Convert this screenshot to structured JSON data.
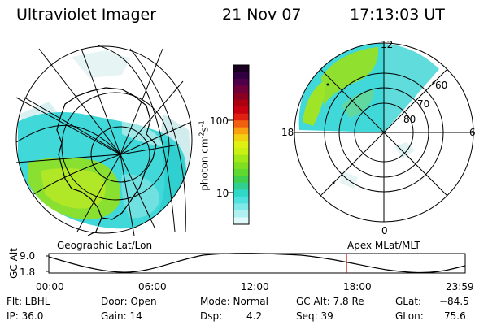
{
  "header": {
    "instrument": "Ultraviolet Imager",
    "date": "21 Nov 07",
    "time": "17:13:03 UT"
  },
  "left_panel": {
    "label": "Geographic Lat/Lon"
  },
  "right_panel": {
    "label": "Apex MLat/MLT",
    "mlt_labels": [
      "12",
      "18",
      "6",
      "0"
    ],
    "mlat_labels": [
      "60",
      "70",
      "80"
    ]
  },
  "colorbar": {
    "unit_label": "photon cm",
    "unit_sup1": "-2",
    "unit_s": "s",
    "unit_sup2": "-1",
    "ticks": [
      "100",
      "10"
    ],
    "colors": [
      "#1a0020",
      "#300040",
      "#50004a",
      "#70003a",
      "#8a0020",
      "#aa0010",
      "#c80010",
      "#e02010",
      "#f06010",
      "#f8a010",
      "#f0d010",
      "#e0f010",
      "#c8f010",
      "#a0e818",
      "#80e020",
      "#60d830",
      "#40d050",
      "#30d090",
      "#30d8c8",
      "#50e0e0",
      "#80e8e8",
      "#b0f0f0",
      "#dff8f8"
    ]
  },
  "timeline": {
    "axis_title": "GC Alt",
    "y_top": "9.0",
    "y_bottom": "1.8",
    "x_ticks": [
      "00:00",
      "06:00",
      "12:00",
      "18:00",
      "23:59"
    ],
    "marker_color": "#d00000"
  },
  "info": {
    "flt": "Flt: LBHL",
    "ip": "IP: 36.0",
    "door": "Door: Open",
    "gain": "Gain: 14",
    "mode": "Mode: Normal",
    "dsp_label": "Dsp:",
    "dsp_value": "4.2",
    "gc_alt": "GC Alt: 7.8 Re",
    "seq": "Seq: 39",
    "glat_label": "GLat:",
    "glat_value": "−84.5",
    "glon_label": "GLon:",
    "glon_value": "75.6"
  }
}
